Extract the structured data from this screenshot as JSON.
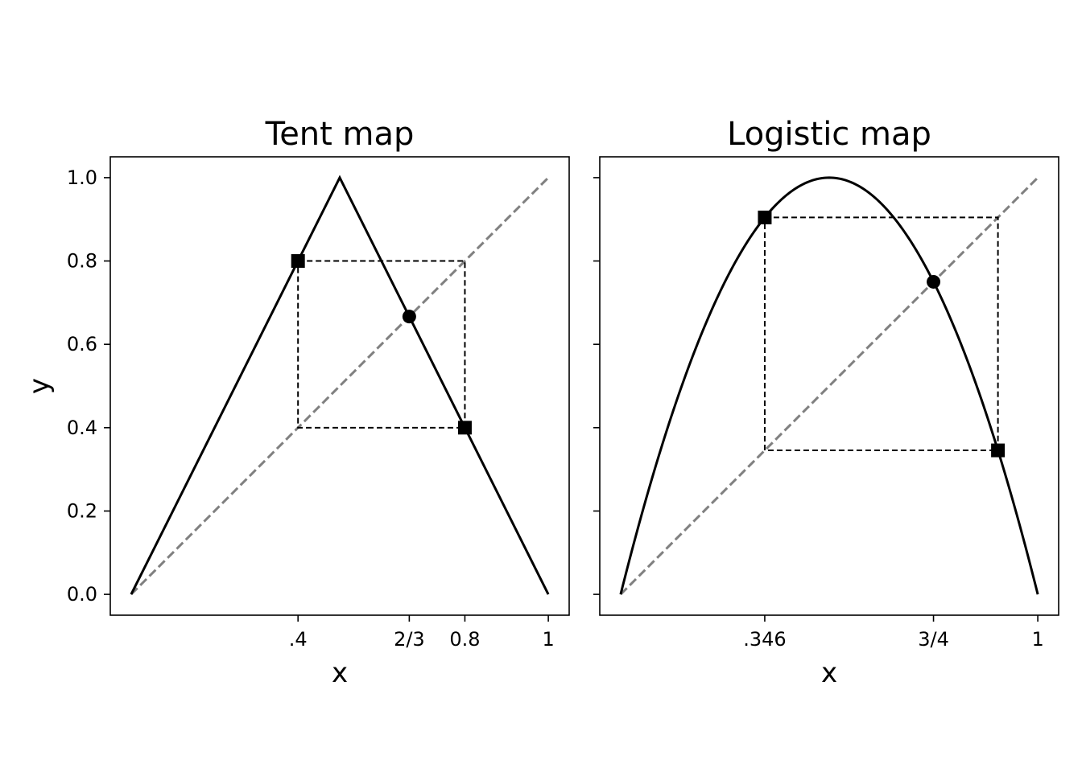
{
  "chart_data": [
    {
      "type": "line",
      "title": "Tent map",
      "xlabel": "x",
      "ylabel": "y",
      "xlim": [
        -0.05,
        1.05
      ],
      "ylim": [
        -0.05,
        1.05
      ],
      "xticks": [
        {
          "value": 0.4,
          "label": ".4"
        },
        {
          "value": 0.6667,
          "label": "2/3"
        },
        {
          "value": 0.8,
          "label": "0.8"
        },
        {
          "value": 1.0,
          "label": "1"
        }
      ],
      "yticks": [
        {
          "value": 0.0,
          "label": "0.0"
        },
        {
          "value": 0.2,
          "label": "0.2"
        },
        {
          "value": 0.4,
          "label": "0.4"
        },
        {
          "value": 0.6,
          "label": "0.6"
        },
        {
          "value": 0.8,
          "label": "0.8"
        },
        {
          "value": 1.0,
          "label": "1.0"
        }
      ],
      "curve": {
        "x": [
          0.0,
          0.5,
          1.0
        ],
        "y": [
          0.0,
          1.0,
          0.0
        ],
        "color": "#000000"
      },
      "diagonal": {
        "x": [
          0.0,
          1.0
        ],
        "y": [
          0.0,
          1.0
        ],
        "color": "#808080",
        "style": "dashed"
      },
      "cycle_box": {
        "x": [
          0.4,
          0.8
        ],
        "y": [
          0.4,
          0.8
        ],
        "color": "#000000",
        "style": "dashed"
      },
      "fixed_point": {
        "x": 0.6667,
        "y": 0.6667,
        "marker": "circle"
      },
      "cycle_points": [
        {
          "x": 0.4,
          "y": 0.8,
          "marker": "square"
        },
        {
          "x": 0.8,
          "y": 0.4,
          "marker": "square"
        }
      ]
    },
    {
      "type": "line",
      "title": "Logistic map",
      "xlabel": "x",
      "ylabel": "",
      "xlim": [
        -0.05,
        1.05
      ],
      "ylim": [
        -0.05,
        1.05
      ],
      "xticks": [
        {
          "value": 0.3455,
          "label": ".346"
        },
        {
          "value": 0.75,
          "label": "3/4"
        },
        {
          "value": 1.0,
          "label": "1"
        }
      ],
      "yticks": [
        {
          "value": 0.0,
          "label": ""
        },
        {
          "value": 0.2,
          "label": ""
        },
        {
          "value": 0.4,
          "label": ""
        },
        {
          "value": 0.6,
          "label": ""
        },
        {
          "value": 0.8,
          "label": ""
        },
        {
          "value": 1.0,
          "label": ""
        }
      ],
      "curve": {
        "function": "4*x*(1-x)",
        "x_range": [
          0.0,
          1.0
        ],
        "color": "#000000"
      },
      "diagonal": {
        "x": [
          0.0,
          1.0
        ],
        "y": [
          0.0,
          1.0
        ],
        "color": "#808080",
        "style": "dashed"
      },
      "cycle_box": {
        "x": [
          0.3455,
          0.9045
        ],
        "y": [
          0.3455,
          0.9045
        ],
        "color": "#000000",
        "style": "dashed"
      },
      "fixed_point": {
        "x": 0.75,
        "y": 0.75,
        "marker": "circle"
      },
      "cycle_points": [
        {
          "x": 0.3455,
          "y": 0.9045,
          "marker": "square"
        },
        {
          "x": 0.9045,
          "y": 0.3455,
          "marker": "square"
        }
      ]
    }
  ]
}
